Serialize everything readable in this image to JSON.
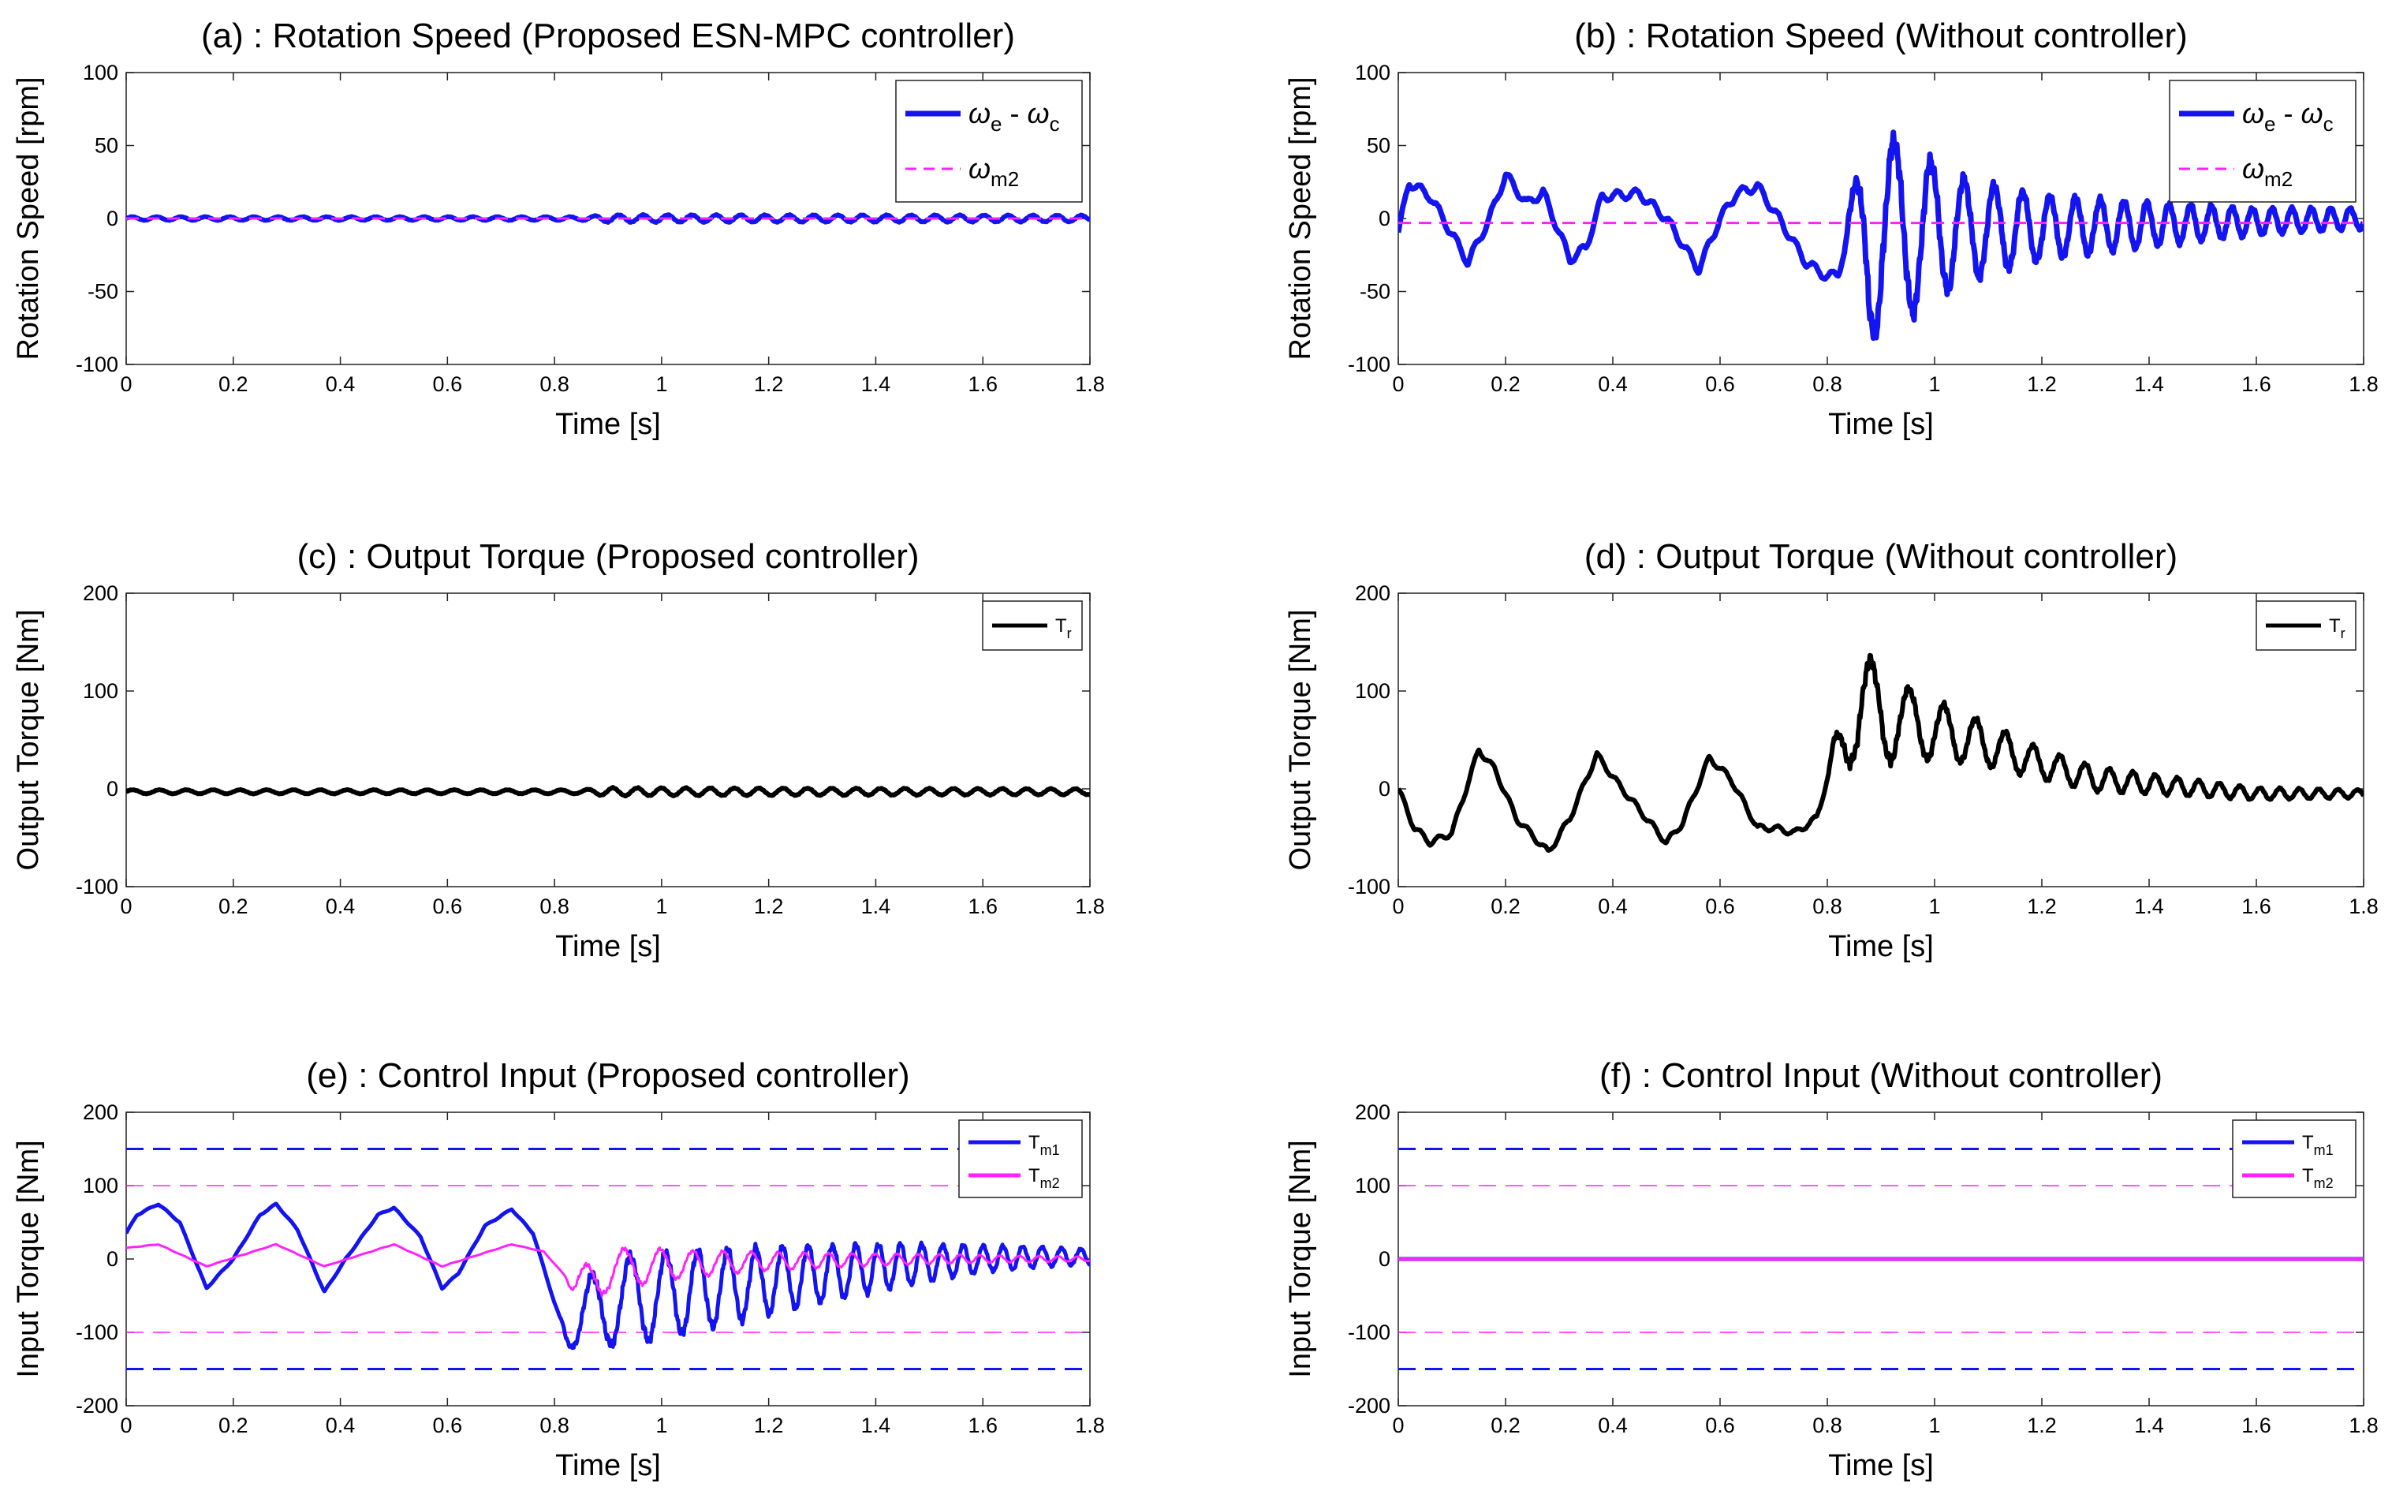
{
  "figure": "Six-panel simulation comparison: rotation speed, output torque and control input with and without controller",
  "chart_data": [
    {
      "id": "a",
      "type": "line",
      "title": "(a) : Rotation Speed (Proposed ESN-MPC controller)",
      "xlabel": "Time [s]",
      "ylabel": "Rotation Speed [rpm]",
      "xlim": [
        0,
        1.8
      ],
      "ylim": [
        -100,
        100
      ],
      "xticks": [
        "0",
        "0.2",
        "0.4",
        "0.6",
        "0.8",
        "1",
        "1.2",
        "1.4",
        "1.6",
        "1.8"
      ],
      "yticks": [
        "100",
        "50",
        "0",
        "-50",
        "-100"
      ],
      "legend": {
        "position": "top-right",
        "entries": [
          {
            "symbol": "ω",
            "sub": "e",
            "mid": " - ",
            "symbol2": "ω",
            "sub2": "c",
            "color": "#1414f0",
            "style": "solid"
          },
          {
            "symbol": "ω",
            "sub": "m2",
            "color": "#ff22ff",
            "style": "dashed"
          }
        ]
      },
      "series": [
        {
          "name": "omega_e - omega_c",
          "color": "#1414f0",
          "width": 6,
          "base": [
            [
              0,
              0
            ],
            [
              1.8,
              0
            ]
          ],
          "osc": [
            [
              0,
              1.2,
              22
            ],
            [
              0.85,
              1.2,
              22
            ],
            [
              0.9,
              2.5,
              22
            ],
            [
              1.8,
              2.2,
              22
            ]
          ]
        },
        {
          "name": "omega_m2",
          "color": "#ff22ff",
          "width": 3,
          "dash": true,
          "base": [
            [
              0,
              0
            ],
            [
              1.8,
              0
            ]
          ]
        }
      ]
    },
    {
      "id": "b",
      "type": "line",
      "title": "(b) : Rotation Speed (Without controller)",
      "xlabel": "Time [s]",
      "ylabel": "Rotation Speed [rpm]",
      "xlim": [
        0,
        1.8
      ],
      "ylim": [
        -100,
        100
      ],
      "xticks": [
        "0",
        "0.2",
        "0.4",
        "0.6",
        "0.8",
        "1",
        "1.2",
        "1.4",
        "1.6",
        "1.8"
      ],
      "yticks": [
        "100",
        "50",
        "0",
        "-50",
        "-100"
      ],
      "legend": {
        "position": "top-right",
        "entries": [
          {
            "symbol": "ω",
            "sub": "e",
            "mid": " - ",
            "symbol2": "ω",
            "sub2": "c",
            "color": "#1414f0",
            "style": "solid"
          },
          {
            "symbol": "ω",
            "sub": "m2",
            "color": "#ff22ff",
            "style": "dashed"
          }
        ]
      },
      "series": [
        {
          "name": "omega_e - omega_c",
          "color": "#1414f0",
          "width": 7,
          "base": [
            [
              0,
              -10
            ],
            [
              0.02,
              25
            ],
            [
              0.06,
              15
            ],
            [
              0.13,
              -30
            ],
            [
              0.17,
              0
            ],
            [
              0.2,
              30
            ],
            [
              0.24,
              10
            ],
            [
              0.27,
              18
            ],
            [
              0.32,
              -28
            ],
            [
              0.35,
              -20
            ],
            [
              0.38,
              15
            ],
            [
              0.45,
              17
            ],
            [
              0.5,
              0
            ],
            [
              0.56,
              -35
            ],
            [
              0.6,
              0
            ],
            [
              0.63,
              17
            ],
            [
              0.67,
              22
            ],
            [
              0.71,
              0
            ],
            [
              0.76,
              -30
            ],
            [
              0.8,
              -40
            ],
            [
              0.82,
              -38
            ],
            [
              0.84,
              -10
            ],
            [
              1.8,
              0
            ]
          ],
          "osc": [
            [
              0,
              3,
              30
            ],
            [
              0.83,
              3,
              30
            ],
            [
              0.84,
              18,
              14
            ],
            [
              0.88,
              70,
              13
            ],
            [
              0.96,
              55,
              14.5
            ],
            [
              1.05,
              35,
              17
            ],
            [
              1.2,
              22,
              20
            ],
            [
              1.4,
              15,
              24
            ],
            [
              1.6,
              9,
              27
            ],
            [
              1.8,
              7,
              28
            ]
          ]
        },
        {
          "name": "omega_m2",
          "color": "#ff22ff",
          "width": 3,
          "dash": true,
          "base": [
            [
              0,
              -3
            ],
            [
              1.8,
              -3
            ]
          ]
        }
      ]
    },
    {
      "id": "c",
      "type": "line",
      "title": "(c) : Output Torque (Proposed controller)",
      "xlabel": "Time [s]",
      "ylabel": "Output Torque [Nm]",
      "xlim": [
        0,
        1.8
      ],
      "ylim": [
        -100,
        200
      ],
      "xticks": [
        "0",
        "0.2",
        "0.4",
        "0.6",
        "0.8",
        "1",
        "1.2",
        "1.4",
        "1.6",
        "1.8"
      ],
      "yticks": [
        "200",
        "100",
        "0",
        "-100"
      ],
      "legend": {
        "position": "top-right",
        "entries": [
          {
            "symbol": "T",
            "sub": "r",
            "color": "#000000",
            "style": "solid"
          }
        ]
      },
      "series": [
        {
          "name": "T_r",
          "color": "#000000",
          "width": 6,
          "base": [
            [
              0,
              -3
            ],
            [
              1.8,
              -3
            ]
          ],
          "osc": [
            [
              0,
              2,
              20
            ],
            [
              0.85,
              2,
              20
            ],
            [
              0.9,
              4,
              22
            ],
            [
              1.8,
              3,
              22
            ]
          ]
        }
      ]
    },
    {
      "id": "d",
      "type": "line",
      "title": "(d) : Output Torque (Without controller)",
      "xlabel": "Time [s]",
      "ylabel": "Output Torque [Nm]",
      "xlim": [
        0,
        1.8
      ],
      "ylim": [
        -100,
        200
      ],
      "xticks": [
        "0",
        "0.2",
        "0.4",
        "0.6",
        "0.8",
        "1",
        "1.2",
        "1.4",
        "1.6",
        "1.8"
      ],
      "yticks": [
        "200",
        "100",
        "0",
        "-100"
      ],
      "legend": {
        "position": "top-right",
        "entries": [
          {
            "symbol": "T",
            "sub": "r",
            "color": "#000000",
            "style": "solid"
          }
        ]
      },
      "series": [
        {
          "name": "T_r",
          "color": "#000000",
          "width": 6,
          "base": [
            [
              0,
              0
            ],
            [
              0.03,
              -40
            ],
            [
              0.06,
              -55
            ],
            [
              0.1,
              -45
            ],
            [
              0.15,
              40
            ],
            [
              0.18,
              20
            ],
            [
              0.22,
              -30
            ],
            [
              0.28,
              -65
            ],
            [
              0.32,
              -30
            ],
            [
              0.37,
              35
            ],
            [
              0.41,
              5
            ],
            [
              0.5,
              -55
            ],
            [
              0.53,
              -35
            ],
            [
              0.58,
              32
            ],
            [
              0.62,
              10
            ],
            [
              0.67,
              -40
            ],
            [
              0.7,
              -40
            ],
            [
              0.74,
              -45
            ],
            [
              0.78,
              -30
            ],
            [
              0.8,
              10
            ],
            [
              0.83,
              60
            ],
            [
              0.85,
              80
            ],
            [
              0.9,
              75
            ],
            [
              1.0,
              60
            ],
            [
              1.1,
              45
            ],
            [
              1.2,
              25
            ],
            [
              1.3,
              10
            ],
            [
              1.4,
              5
            ],
            [
              1.5,
              0
            ],
            [
              1.6,
              -5
            ],
            [
              1.8,
              -5
            ]
          ],
          "osc": [
            [
              0,
              3,
              30
            ],
            [
              0.8,
              3,
              30
            ],
            [
              0.82,
              30,
              14
            ],
            [
              0.86,
              60,
              13
            ],
            [
              0.95,
              35,
              14.5
            ],
            [
              1.05,
              25,
              17
            ],
            [
              1.2,
              15,
              20
            ],
            [
              1.4,
              10,
              24
            ],
            [
              1.6,
              6,
              27
            ],
            [
              1.8,
              4,
              28
            ]
          ]
        }
      ]
    },
    {
      "id": "e",
      "type": "line",
      "title": "(e) : Control Input (Proposed controller)",
      "xlabel": "Time [s]",
      "ylabel": "Input Torque [Nm]",
      "xlim": [
        0,
        1.8
      ],
      "ylim": [
        -200,
        200
      ],
      "xticks": [
        "0",
        "0.2",
        "0.4",
        "0.6",
        "0.8",
        "1",
        "1.2",
        "1.4",
        "1.6",
        "1.8"
      ],
      "yticks": [
        "200",
        "100",
        "0",
        "-100",
        "-200"
      ],
      "legend": {
        "position": "top-right",
        "entries": [
          {
            "symbol": "T",
            "sub": "m1",
            "color": "#1414f0",
            "style": "solid"
          },
          {
            "symbol": "T",
            "sub": "m2",
            "color": "#ff22ff",
            "style": "solid"
          }
        ]
      },
      "limits": [
        {
          "value": 150,
          "color": "#1414f0",
          "width": 3
        },
        {
          "value": -150,
          "color": "#1414f0",
          "width": 3
        },
        {
          "value": 100,
          "color": "#ff22ff",
          "width": 1.5
        },
        {
          "value": -100,
          "color": "#ff22ff",
          "width": 1.5
        }
      ],
      "series": [
        {
          "name": "T_m1",
          "color": "#1414f0",
          "width": 5,
          "base": [
            [
              0,
              35
            ],
            [
              0.02,
              60
            ],
            [
              0.06,
              75
            ],
            [
              0.1,
              50
            ],
            [
              0.15,
              -40
            ],
            [
              0.2,
              0
            ],
            [
              0.25,
              60
            ],
            [
              0.28,
              75
            ],
            [
              0.32,
              40
            ],
            [
              0.37,
              -45
            ],
            [
              0.41,
              0
            ],
            [
              0.47,
              60
            ],
            [
              0.5,
              70
            ],
            [
              0.55,
              30
            ],
            [
              0.59,
              -40
            ],
            [
              0.62,
              -20
            ],
            [
              0.67,
              45
            ],
            [
              0.72,
              68
            ],
            [
              0.76,
              35
            ],
            [
              0.8,
              -60
            ],
            [
              0.82,
              -100
            ],
            [
              0.85,
              -85
            ],
            [
              0.9,
              -60
            ],
            [
              1.0,
              -50
            ],
            [
              1.1,
              -40
            ],
            [
              1.2,
              -30
            ],
            [
              1.3,
              -20
            ],
            [
              1.4,
              -12
            ],
            [
              1.5,
              -5
            ],
            [
              1.6,
              0
            ],
            [
              1.7,
              3
            ],
            [
              1.8,
              3
            ]
          ],
          "osc": [
            [
              0,
              0.8,
              30
            ],
            [
              0.81,
              0.8,
              30
            ],
            [
              0.83,
              25,
              14
            ],
            [
              0.87,
              55,
              13
            ],
            [
              0.95,
              60,
              14.5
            ],
            [
              1.05,
              55,
              17
            ],
            [
              1.2,
              45,
              20
            ],
            [
              1.4,
              32,
              24
            ],
            [
              1.6,
              18,
              27
            ],
            [
              1.8,
              10,
              28
            ]
          ]
        },
        {
          "name": "T_m2",
          "color": "#ff22ff",
          "width": 3,
          "base": [
            [
              0,
              15
            ],
            [
              0.06,
              20
            ],
            [
              0.15,
              -10
            ],
            [
              0.28,
              20
            ],
            [
              0.37,
              -10
            ],
            [
              0.5,
              20
            ],
            [
              0.59,
              -10
            ],
            [
              0.72,
              20
            ],
            [
              0.78,
              10
            ],
            [
              0.84,
              -40
            ],
            [
              0.9,
              -15
            ],
            [
              1.0,
              -8
            ],
            [
              1.2,
              -3
            ],
            [
              1.5,
              0
            ],
            [
              1.8,
              0
            ]
          ],
          "osc": [
            [
              0,
              0.3,
              30
            ],
            [
              0.82,
              0.3,
              30
            ],
            [
              0.84,
              20,
              14
            ],
            [
              0.88,
              30,
              13
            ],
            [
              0.95,
              25,
              14.5
            ],
            [
              1.05,
              18,
              17
            ],
            [
              1.2,
              12,
              20
            ],
            [
              1.4,
              8,
              24
            ],
            [
              1.6,
              5,
              27
            ],
            [
              1.8,
              3,
              28
            ]
          ]
        }
      ]
    },
    {
      "id": "f",
      "type": "line",
      "title": "(f) : Control Input (Without controller)",
      "xlabel": "Time [s]",
      "ylabel": "Input Torque [Nm]",
      "xlim": [
        0,
        1.8
      ],
      "ylim": [
        -200,
        200
      ],
      "xticks": [
        "0",
        "0.2",
        "0.4",
        "0.6",
        "0.8",
        "1",
        "1.2",
        "1.4",
        "1.6",
        "1.8"
      ],
      "yticks": [
        "200",
        "100",
        "0",
        "-100",
        "-200"
      ],
      "legend": {
        "position": "top-right",
        "entries": [
          {
            "symbol": "T",
            "sub": "m1",
            "color": "#1414f0",
            "style": "solid"
          },
          {
            "symbol": "T",
            "sub": "m2",
            "color": "#ff22ff",
            "style": "solid"
          }
        ]
      },
      "limits": [
        {
          "value": 150,
          "color": "#1414f0",
          "width": 3
        },
        {
          "value": -150,
          "color": "#1414f0",
          "width": 3
        },
        {
          "value": 100,
          "color": "#ff22ff",
          "width": 1.5
        },
        {
          "value": -100,
          "color": "#ff22ff",
          "width": 1.5
        }
      ],
      "series": [
        {
          "name": "T_m1",
          "color": "#1414f0",
          "width": 5,
          "base": [
            [
              0,
              0
            ],
            [
              1.8,
              0
            ]
          ]
        },
        {
          "name": "T_m2",
          "color": "#ff22ff",
          "width": 4,
          "base": [
            [
              0,
              0
            ],
            [
              1.8,
              0
            ]
          ]
        }
      ]
    }
  ]
}
